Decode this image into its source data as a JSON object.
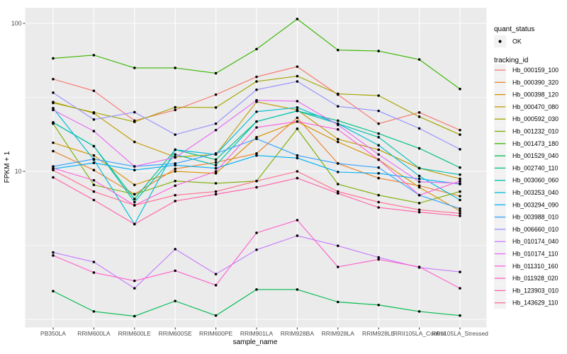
{
  "window": {
    "background": "#FFFFFF"
  },
  "chart_data": {
    "type": "line",
    "title": "",
    "xlabel": "sample_name",
    "ylabel": "FPKM + 1",
    "y_scale": "log10",
    "y_axis_tick_labels": [
      "10",
      "100"
    ],
    "y_axis_tick_values": [
      10,
      100
    ],
    "y_minor_grid_values": [
      3.1623,
      31.623
    ],
    "y_major_grid_values": [
      1,
      10,
      100
    ],
    "ylim_fpkm_plus1": [
      0.89,
      127
    ],
    "grid": "white major/minor gridlines on grey panel",
    "legend_position": "right",
    "panel_background": "#EBEBEB",
    "gridline_color": "#FFFFFF",
    "point_color": "#000000",
    "tick_color": "#333333",
    "tick_label_color": "#4D4D4D",
    "categories": [
      "PB350LA",
      "RRIM600LA",
      "RRIM600LE",
      "RRIM600SE",
      "RRIM600PE",
      "RRIM901LA",
      "RRIM928BA",
      "RRIM928LA",
      "RRIM928LE",
      "RRII105LA_Control",
      "RRII105LA_Stressed"
    ],
    "series": [
      {
        "name": "Hb_000159_100",
        "color": "#F8766D",
        "values": [
          42,
          35,
          22,
          26,
          33,
          43.5,
          51,
          33,
          21,
          25,
          19
        ]
      },
      {
        "name": "Hb_000390_320",
        "color": "#EA8331",
        "values": [
          13.7,
          10.2,
          7,
          10.4,
          11.5,
          13.2,
          23,
          11.3,
          9,
          8,
          6.8
        ]
      },
      {
        "name": "Hb_000398_120",
        "color": "#D89000",
        "values": [
          15.6,
          12.8,
          8.1,
          10,
          9.7,
          17,
          21.7,
          15.8,
          12,
          7.8,
          5.4
        ]
      },
      {
        "name": "Hb_000470_080",
        "color": "#C09B00",
        "values": [
          29.4,
          24.7,
          15.8,
          12.5,
          13,
          29.5,
          26,
          16.5,
          14,
          10.5,
          8.9
        ]
      },
      {
        "name": "Hb_000592_030",
        "color": "#A3A500",
        "values": [
          29,
          25,
          21.6,
          27.1,
          27,
          40.5,
          44,
          33.4,
          32.5,
          23.4,
          17.7
        ]
      },
      {
        "name": "Hb_001232_010",
        "color": "#7CAE00",
        "values": [
          21,
          8.1,
          7,
          8.6,
          8.3,
          8.6,
          19.4,
          8.2,
          6.9,
          6.1,
          7.3
        ]
      },
      {
        "name": "Hb_001473_180",
        "color": "#39B600",
        "values": [
          58,
          61,
          50,
          50,
          46,
          67,
          107,
          66,
          65,
          57,
          36
        ]
      },
      {
        "name": "Hb_001529_040",
        "color": "#00BB4E",
        "values": [
          1.55,
          1.13,
          1.05,
          1.33,
          1.06,
          1.59,
          1.59,
          1.31,
          1.25,
          1.13,
          1.06
        ]
      },
      {
        "name": "Hb_002740_110",
        "color": "#00C087",
        "values": [
          21.4,
          14.8,
          6.5,
          14,
          12,
          21.7,
          25.6,
          22,
          18,
          14.3,
          10.6
        ]
      },
      {
        "name": "Hb_003060_060",
        "color": "#00C0AF",
        "values": [
          21.4,
          14.8,
          6.2,
          13,
          11,
          21.7,
          25.6,
          21,
          17,
          10.5,
          9.5
        ]
      },
      {
        "name": "Hb_003253_040",
        "color": "#00BCD8",
        "values": [
          26.7,
          12,
          4.4,
          14,
          13,
          25.3,
          27,
          21,
          15,
          9.3,
          6.4
        ]
      },
      {
        "name": "Hb_003294_090",
        "color": "#00B0F6",
        "values": [
          10.4,
          11.4,
          10.2,
          11,
          10.5,
          12.8,
          12.3,
          9.9,
          9.7,
          8.9,
          8.2
        ]
      },
      {
        "name": "Hb_003988_010",
        "color": "#35A2FF",
        "values": [
          10.8,
          12.1,
          10.8,
          11.3,
          13.2,
          16.6,
          12.8,
          11.3,
          10.6,
          6.9,
          5.6
        ]
      },
      {
        "name": "Hb_006660_010",
        "color": "#9590FF",
        "values": [
          34,
          22.4,
          25.1,
          17.7,
          21,
          35.6,
          40.5,
          27.5,
          25.6,
          19.5,
          14.1
        ]
      },
      {
        "name": "Hb_010174_040",
        "color": "#C77CFF",
        "values": [
          2.83,
          2.44,
          1.62,
          2.98,
          2.02,
          2.95,
          3.67,
          3.14,
          2.62,
          2.24,
          2.09
        ]
      },
      {
        "name": "Hb_010174_110",
        "color": "#E76BF3",
        "values": [
          26,
          18.7,
          10.8,
          12.4,
          19,
          30.2,
          29.8,
          20.6,
          13,
          8.5,
          8.3
        ]
      },
      {
        "name": "Hb_011310_160",
        "color": "#FA62DB",
        "values": [
          10.5,
          8.7,
          5.9,
          8,
          10,
          19.8,
          21.7,
          19.2,
          12,
          6.9,
          8.6
        ]
      },
      {
        "name": "Hb_011928_020",
        "color": "#FF61CC",
        "values": [
          2.7,
          2.07,
          1.82,
          2.13,
          1.7,
          3.84,
          4.68,
          2.26,
          2.54,
          2.26,
          1.62
        ]
      },
      {
        "name": "Hb_123903_010",
        "color": "#FF65AA",
        "values": [
          9.1,
          6.4,
          4.4,
          6.3,
          7,
          7.8,
          9,
          7.1,
          5.7,
          5.3,
          5
        ]
      },
      {
        "name": "Hb_143629_110",
        "color": "#FF6C92",
        "values": [
          10.2,
          7.3,
          5.9,
          6.9,
          7.3,
          8.6,
          10,
          7.3,
          6.2,
          5.5,
          5.2
        ]
      }
    ]
  },
  "legend": {
    "quant_status_title": "quant_status",
    "quant_status_items": [
      {
        "label": "OK",
        "symbol": "black-point"
      }
    ],
    "tracking_title": "tracking_id",
    "key_background": "#F2F2F2"
  }
}
